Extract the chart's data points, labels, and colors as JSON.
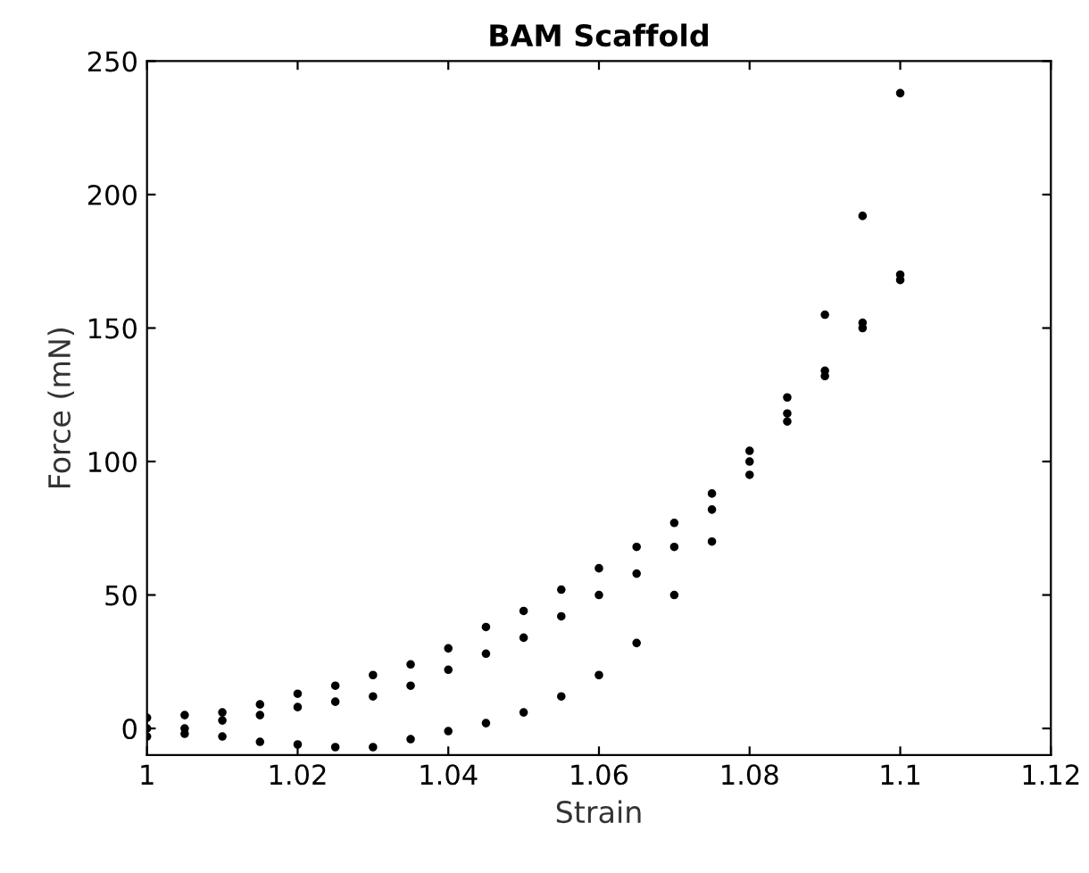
{
  "chart_data": {
    "type": "scatter",
    "title": "BAM Scaffold",
    "xlabel": "Strain",
    "ylabel": "Force (mN)",
    "xlim": [
      1,
      1.12
    ],
    "xticks": [
      1,
      {
        "value": 1.02,
        "label": "1.02"
      },
      {
        "value": 1.04,
        "label": "1.04"
      },
      {
        "value": 1.06,
        "label": "1.06"
      },
      {
        "value": 1.08,
        "label": "1.08"
      },
      {
        "value": 1.1,
        "label": "1.1"
      },
      {
        "value": 1.12,
        "label": "1.12"
      }
    ],
    "ylim": [
      -10,
      250
    ],
    "yticks": [
      0,
      50,
      100,
      150,
      200,
      250
    ],
    "grid": false,
    "legend": false,
    "marker": "circle",
    "series": [
      {
        "color": "#000000",
        "x": [
          1.0,
          1.005,
          1.01,
          1.015,
          1.02,
          1.025,
          1.03,
          1.035,
          1.04,
          1.045,
          1.05,
          1.055,
          1.06,
          1.065,
          1.07,
          1.075,
          1.08,
          1.085,
          1.09,
          1.095,
          1.1
        ],
        "values": [
          4,
          5,
          6,
          9,
          13,
          16,
          20,
          24,
          30,
          38,
          44,
          52,
          60,
          68,
          77,
          88,
          104,
          118,
          134,
          150,
          168
        ]
      },
      {
        "color": "#000000",
        "x": [
          1.0,
          1.005,
          1.01,
          1.015,
          1.02,
          1.025,
          1.03,
          1.035,
          1.04,
          1.045,
          1.05,
          1.055,
          1.06,
          1.065,
          1.07,
          1.075,
          1.08,
          1.085,
          1.09,
          1.095,
          1.1
        ],
        "values": [
          -3,
          0,
          3,
          5,
          8,
          10,
          12,
          16,
          22,
          28,
          34,
          42,
          50,
          58,
          68,
          82,
          100,
          115,
          132,
          152,
          170
        ]
      },
      {
        "color": "#000000",
        "x": [
          1.0,
          1.005,
          1.01,
          1.015,
          1.02,
          1.025,
          1.03,
          1.035,
          1.04,
          1.045,
          1.05,
          1.055,
          1.06,
          1.065,
          1.07,
          1.075,
          1.08,
          1.085,
          1.09,
          1.095,
          1.1
        ],
        "values": [
          0,
          -2,
          -3,
          -5,
          -6,
          -7,
          -7,
          -4,
          -1,
          2,
          6,
          12,
          20,
          32,
          50,
          70,
          95,
          124,
          155,
          192,
          238
        ]
      }
    ]
  }
}
